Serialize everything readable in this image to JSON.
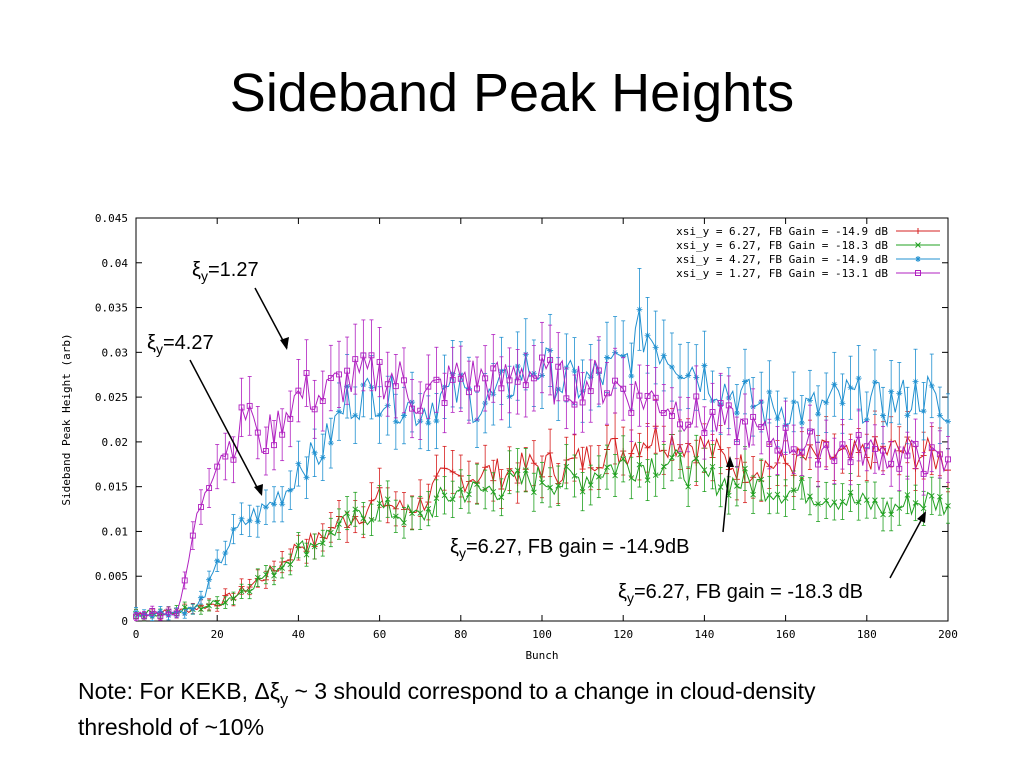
{
  "slide": {
    "title": "Sideband Peak Heights",
    "note_line1": "Note:  For KEKB, Δξ",
    "note_sub": "y",
    "note_line1_rest": " ~ 3 should correspond to a change in cloud-density",
    "note_line2": "threshold of ~10%"
  },
  "annotations": [
    {
      "sym": "ξ",
      "sub": "y",
      "text": "=1.27"
    },
    {
      "sym": "ξ",
      "sub": "y",
      "text": "=4.27"
    },
    {
      "sym": "ξ",
      "sub": "y",
      "text": "=6.27, FB gain = -14.9dB"
    },
    {
      "sym": "ξ",
      "sub": "y",
      "text": "=6.27, FB gain = -18.3 dB"
    }
  ],
  "chart_data": {
    "type": "line",
    "xlabel": "Bunch",
    "ylabel": "Sideband Peak Height (arb)",
    "xlim": [
      0,
      200
    ],
    "ylim": [
      0,
      0.045
    ],
    "x_ticks": [
      "0",
      "20",
      "40",
      "60",
      "80",
      "100",
      "120",
      "140",
      "160",
      "180",
      "200"
    ],
    "y_ticks": [
      "0",
      "0.005",
      "0.01",
      "0.015",
      "0.02",
      "0.025",
      "0.03",
      "0.035",
      "0.04",
      "0.045"
    ],
    "legend_position": "top-right",
    "grid": false,
    "error_bars": true,
    "series": [
      {
        "name": "xsi_y = 6.27, FB Gain = -14.9 dB",
        "color": "#d62020",
        "marker": "plus",
        "points": [
          [
            0,
            0.0008
          ],
          [
            10,
            0.001
          ],
          [
            20,
            0.002
          ],
          [
            25,
            0.003
          ],
          [
            30,
            0.0045
          ],
          [
            35,
            0.006
          ],
          [
            40,
            0.0085
          ],
          [
            45,
            0.009
          ],
          [
            50,
            0.011
          ],
          [
            55,
            0.012
          ],
          [
            60,
            0.0135
          ],
          [
            65,
            0.0125
          ],
          [
            70,
            0.013
          ],
          [
            75,
            0.0155
          ],
          [
            80,
            0.016
          ],
          [
            85,
            0.0165
          ],
          [
            90,
            0.0165
          ],
          [
            95,
            0.017
          ],
          [
            100,
            0.0175
          ],
          [
            105,
            0.017
          ],
          [
            110,
            0.018
          ],
          [
            115,
            0.019
          ],
          [
            120,
            0.019
          ],
          [
            125,
            0.0205
          ],
          [
            130,
            0.0205
          ],
          [
            135,
            0.02
          ],
          [
            140,
            0.0195
          ],
          [
            145,
            0.018
          ],
          [
            150,
            0.017
          ],
          [
            155,
            0.0175
          ],
          [
            160,
            0.0175
          ],
          [
            165,
            0.018
          ],
          [
            170,
            0.0185
          ],
          [
            175,
            0.018
          ],
          [
            180,
            0.0185
          ],
          [
            185,
            0.019
          ],
          [
            190,
            0.019
          ],
          [
            195,
            0.0185
          ],
          [
            200,
            0.018
          ]
        ]
      },
      {
        "name": "xsi_y = 6.27, FB Gain = -18.3 dB",
        "color": "#20a020",
        "marker": "x",
        "points": [
          [
            0,
            0.0008
          ],
          [
            10,
            0.001
          ],
          [
            20,
            0.002
          ],
          [
            25,
            0.003
          ],
          [
            30,
            0.0045
          ],
          [
            35,
            0.006
          ],
          [
            40,
            0.008
          ],
          [
            45,
            0.009
          ],
          [
            50,
            0.0105
          ],
          [
            55,
            0.0115
          ],
          [
            60,
            0.0125
          ],
          [
            65,
            0.012
          ],
          [
            70,
            0.0115
          ],
          [
            75,
            0.0135
          ],
          [
            80,
            0.0145
          ],
          [
            85,
            0.0145
          ],
          [
            90,
            0.015
          ],
          [
            95,
            0.0155
          ],
          [
            100,
            0.016
          ],
          [
            105,
            0.0155
          ],
          [
            110,
            0.016
          ],
          [
            115,
            0.017
          ],
          [
            120,
            0.0175
          ],
          [
            125,
            0.0175
          ],
          [
            130,
            0.018
          ],
          [
            135,
            0.017
          ],
          [
            140,
            0.016
          ],
          [
            145,
            0.0155
          ],
          [
            150,
            0.0155
          ],
          [
            155,
            0.015
          ],
          [
            160,
            0.0145
          ],
          [
            165,
            0.0145
          ],
          [
            170,
            0.014
          ],
          [
            175,
            0.0135
          ],
          [
            180,
            0.013
          ],
          [
            185,
            0.0125
          ],
          [
            190,
            0.013
          ],
          [
            195,
            0.0135
          ],
          [
            200,
            0.013
          ]
        ]
      },
      {
        "name": "xsi_y = 4.27, FB Gain = -14.9 dB",
        "color": "#2090d0",
        "marker": "star",
        "points": [
          [
            0,
            0.0008
          ],
          [
            10,
            0.001
          ],
          [
            15,
            0.0015
          ],
          [
            18,
            0.004
          ],
          [
            22,
            0.008
          ],
          [
            25,
            0.01
          ],
          [
            28,
            0.0115
          ],
          [
            32,
            0.0125
          ],
          [
            35,
            0.014
          ],
          [
            38,
            0.015
          ],
          [
            40,
            0.0175
          ],
          [
            45,
            0.0185
          ],
          [
            48,
            0.021
          ],
          [
            52,
            0.0245
          ],
          [
            55,
            0.025
          ],
          [
            60,
            0.0255
          ],
          [
            65,
            0.0245
          ],
          [
            70,
            0.0235
          ],
          [
            75,
            0.025
          ],
          [
            80,
            0.0255
          ],
          [
            85,
            0.024
          ],
          [
            90,
            0.0255
          ],
          [
            95,
            0.028
          ],
          [
            100,
            0.0285
          ],
          [
            105,
            0.0265
          ],
          [
            110,
            0.0265
          ],
          [
            115,
            0.0275
          ],
          [
            120,
            0.0285
          ],
          [
            125,
            0.0325
          ],
          [
            130,
            0.0305
          ],
          [
            135,
            0.029
          ],
          [
            140,
            0.0275
          ],
          [
            145,
            0.026
          ],
          [
            150,
            0.025
          ],
          [
            155,
            0.0235
          ],
          [
            160,
            0.024
          ],
          [
            165,
            0.0235
          ],
          [
            170,
            0.024
          ],
          [
            175,
            0.025
          ],
          [
            180,
            0.0245
          ],
          [
            185,
            0.024
          ],
          [
            190,
            0.025
          ],
          [
            195,
            0.0255
          ],
          [
            200,
            0.0215
          ]
        ]
      },
      {
        "name": "xsi_y = 1.27, FB Gain = -13.1 dB",
        "color": "#b020c0",
        "marker": "square",
        "points": [
          [
            0,
            0.0008
          ],
          [
            10,
            0.001
          ],
          [
            12,
            0.004
          ],
          [
            14,
            0.0095
          ],
          [
            17,
            0.015
          ],
          [
            20,
            0.0185
          ],
          [
            25,
            0.0205
          ],
          [
            28,
            0.0245
          ],
          [
            30,
            0.0195
          ],
          [
            35,
            0.022
          ],
          [
            38,
            0.0245
          ],
          [
            42,
            0.0255
          ],
          [
            46,
            0.025
          ],
          [
            50,
            0.0265
          ],
          [
            55,
            0.027
          ],
          [
            60,
            0.0275
          ],
          [
            65,
            0.027
          ],
          [
            70,
            0.0245
          ],
          [
            75,
            0.026
          ],
          [
            80,
            0.0275
          ],
          [
            85,
            0.027
          ],
          [
            90,
            0.0265
          ],
          [
            95,
            0.0285
          ],
          [
            100,
            0.027
          ],
          [
            105,
            0.0265
          ],
          [
            110,
            0.027
          ],
          [
            115,
            0.0265
          ],
          [
            120,
            0.026
          ],
          [
            125,
            0.025
          ],
          [
            130,
            0.0245
          ],
          [
            135,
            0.0235
          ],
          [
            140,
            0.0225
          ],
          [
            145,
            0.022
          ],
          [
            150,
            0.0215
          ],
          [
            155,
            0.0205
          ],
          [
            160,
            0.02
          ],
          [
            165,
            0.0195
          ],
          [
            170,
            0.0195
          ],
          [
            175,
            0.019
          ],
          [
            180,
            0.019
          ],
          [
            185,
            0.0185
          ],
          [
            190,
            0.0185
          ],
          [
            195,
            0.018
          ],
          [
            200,
            0.017
          ]
        ]
      }
    ]
  }
}
